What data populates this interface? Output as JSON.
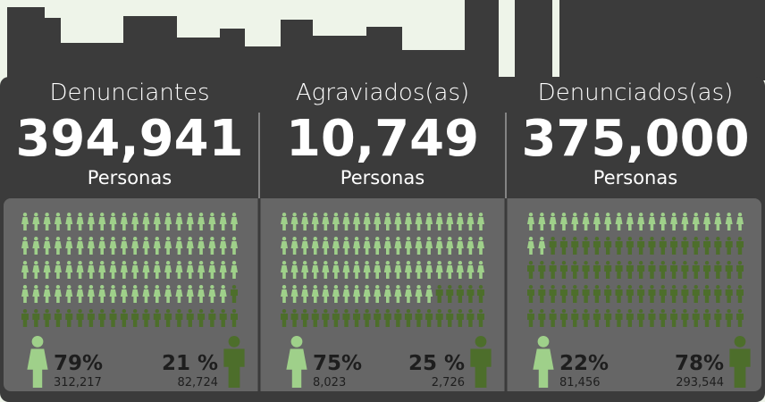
{
  "panels": [
    {
      "title": "Denunciantes",
      "total": "394,941",
      "unit": "Personas",
      "female": {
        "percent": 79,
        "percent_label": "79%",
        "count": "312,217"
      },
      "male": {
        "percent": 21,
        "percent_label": "21 %",
        "count": "82,724"
      }
    },
    {
      "title": "Agraviados(as)",
      "total": "10,749",
      "unit": "Personas",
      "female": {
        "percent": 75,
        "percent_label": "75%",
        "count": "8,023"
      },
      "male": {
        "percent": 25,
        "percent_label": "25 %",
        "count": "2,726"
      }
    },
    {
      "title": "Denunciados(as)",
      "total": "375,000",
      "unit": "Personas",
      "female": {
        "percent": 22,
        "percent_label": "22%",
        "count": "81,456"
      },
      "male": {
        "percent": 78,
        "percent_label": "78%",
        "count": "293,544"
      }
    }
  ]
}
